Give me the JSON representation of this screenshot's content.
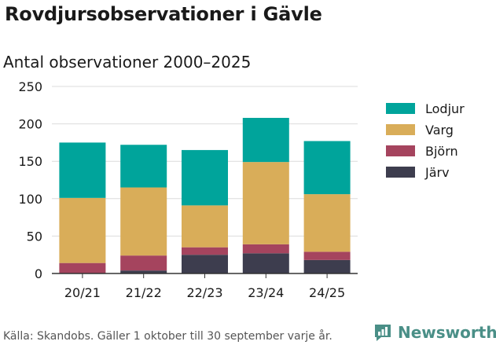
{
  "title": "Rovdjursobservationer i Gävle",
  "chart_data": {
    "type": "bar",
    "stacked": true,
    "title": "Antal observationer 2000–2025",
    "xlabel": "",
    "ylabel": "",
    "ylim": [
      0,
      250
    ],
    "yticks": [
      0,
      50,
      100,
      150,
      200,
      250
    ],
    "grid": true,
    "legend_position": "right",
    "categories": [
      "20/21",
      "21/22",
      "22/23",
      "23/24",
      "24/25"
    ],
    "series": [
      {
        "name": "Järv",
        "color": "#3d3d4e",
        "values": [
          0,
          4,
          25,
          27,
          18
        ]
      },
      {
        "name": "Björn",
        "color": "#a5445e",
        "values": [
          14,
          20,
          10,
          12,
          11
        ]
      },
      {
        "name": "Varg",
        "color": "#d9ad59",
        "values": [
          87,
          91,
          56,
          110,
          77
        ]
      },
      {
        "name": "Lodjur",
        "color": "#00a49b",
        "values": [
          74,
          57,
          74,
          59,
          71
        ]
      }
    ],
    "legend_order": [
      "Lodjur",
      "Varg",
      "Björn",
      "Järv"
    ]
  },
  "footer": "Källa: Skandobs. Gäller 1 oktober till 30 september varje år.",
  "brand": {
    "name": "Newsworthy",
    "color": "#4a8f87"
  }
}
